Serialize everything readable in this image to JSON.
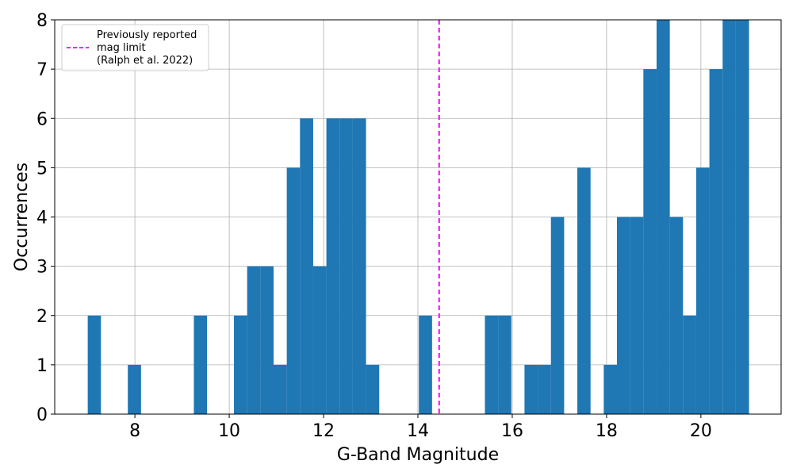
{
  "chart_data": {
    "type": "bar",
    "title": "",
    "xlabel": "G-Band Magnitude",
    "ylabel": "Occurrences",
    "xlim": [
      6.3,
      21.7
    ],
    "ylim": [
      0,
      8
    ],
    "xticks": [
      "8",
      "10",
      "12",
      "14",
      "16",
      "18",
      "20"
    ],
    "yticks": [
      "0",
      "1",
      "2",
      "3",
      "4",
      "5",
      "6",
      "7",
      "8"
    ],
    "grid": true,
    "bar_color": "#1f77b4",
    "bin_width": 0.28,
    "bins": [
      {
        "x": 7.0,
        "y": 2
      },
      {
        "x": 7.85,
        "y": 1
      },
      {
        "x": 9.25,
        "y": 2
      },
      {
        "x": 10.1,
        "y": 2
      },
      {
        "x": 10.38,
        "y": 3
      },
      {
        "x": 10.66,
        "y": 3
      },
      {
        "x": 10.94,
        "y": 1
      },
      {
        "x": 11.22,
        "y": 5
      },
      {
        "x": 11.5,
        "y": 6
      },
      {
        "x": 11.78,
        "y": 3
      },
      {
        "x": 12.06,
        "y": 6
      },
      {
        "x": 12.34,
        "y": 6
      },
      {
        "x": 12.62,
        "y": 6
      },
      {
        "x": 12.9,
        "y": 1
      },
      {
        "x": 14.02,
        "y": 2
      },
      {
        "x": 15.42,
        "y": 2
      },
      {
        "x": 15.7,
        "y": 2
      },
      {
        "x": 16.26,
        "y": 1
      },
      {
        "x": 16.54,
        "y": 1
      },
      {
        "x": 16.82,
        "y": 4
      },
      {
        "x": 17.38,
        "y": 5
      },
      {
        "x": 17.94,
        "y": 1
      },
      {
        "x": 18.22,
        "y": 4
      },
      {
        "x": 18.5,
        "y": 4
      },
      {
        "x": 18.78,
        "y": 7
      },
      {
        "x": 19.06,
        "y": 8
      },
      {
        "x": 19.34,
        "y": 4
      },
      {
        "x": 19.62,
        "y": 2
      },
      {
        "x": 19.9,
        "y": 5
      },
      {
        "x": 20.18,
        "y": 7
      },
      {
        "x": 20.46,
        "y": 8
      },
      {
        "x": 20.74,
        "y": 8
      }
    ],
    "reference_line": {
      "x": 14.45,
      "color": "#ff00ff",
      "style": "dashed",
      "label_lines": [
        "Previously reported",
        "mag limit",
        "(Ralph et al. 2022)"
      ]
    },
    "legend": {
      "position": "top-left"
    }
  }
}
